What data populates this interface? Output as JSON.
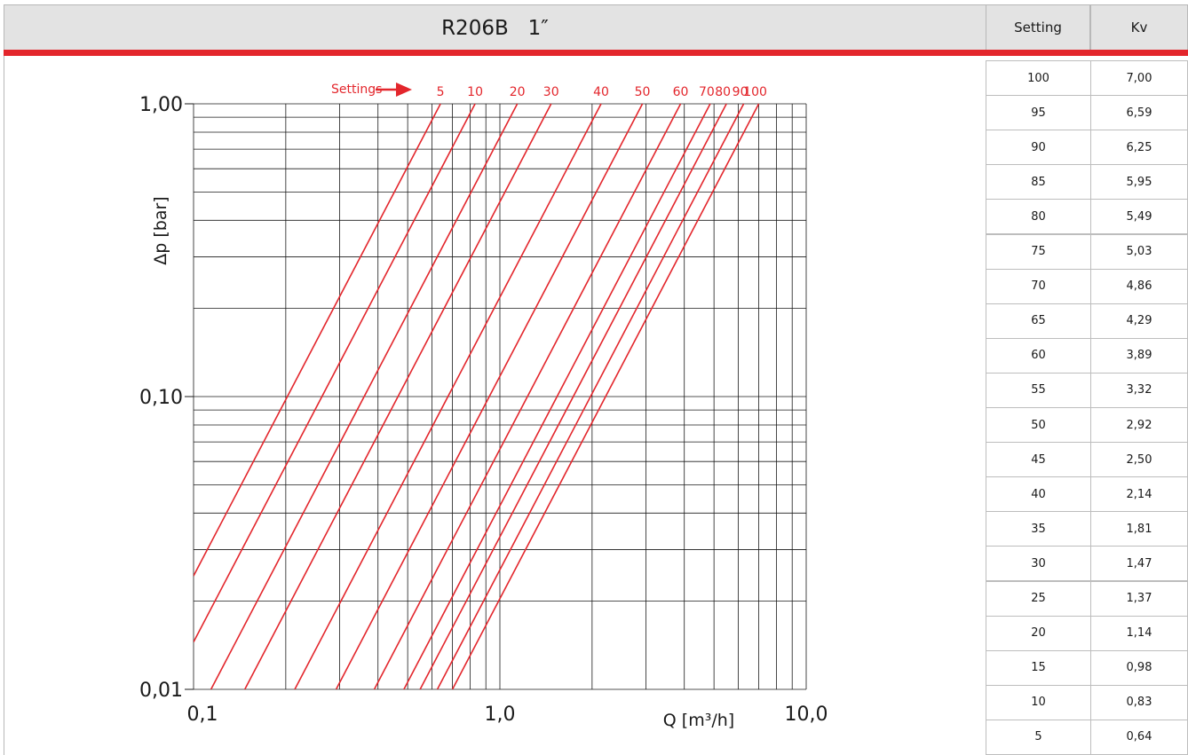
{
  "header": {
    "title": "R206B   1″"
  },
  "table": {
    "col_setting": "Setting",
    "col_kv": "Kv",
    "rows": [
      {
        "setting": "100",
        "kv": "7,00"
      },
      {
        "setting": "95",
        "kv": "6,59"
      },
      {
        "setting": "90",
        "kv": "6,25"
      },
      {
        "setting": "85",
        "kv": "5,95"
      },
      {
        "setting": "80",
        "kv": "5,49"
      },
      {
        "setting": "75",
        "kv": "5,03"
      },
      {
        "setting": "70",
        "kv": "4,86"
      },
      {
        "setting": "65",
        "kv": "4,29"
      },
      {
        "setting": "60",
        "kv": "3,89"
      },
      {
        "setting": "55",
        "kv": "3,32"
      },
      {
        "setting": "50",
        "kv": "2,92"
      },
      {
        "setting": "45",
        "kv": "2,50"
      },
      {
        "setting": "40",
        "kv": "2,14"
      },
      {
        "setting": "35",
        "kv": "1,81"
      },
      {
        "setting": "30",
        "kv": "1,47"
      },
      {
        "setting": "25",
        "kv": "1,37"
      },
      {
        "setting": "20",
        "kv": "1,14"
      },
      {
        "setting": "15",
        "kv": "0,98"
      },
      {
        "setting": "10",
        "kv": "0,83"
      },
      {
        "setting": "5",
        "kv": "0,64"
      }
    ]
  },
  "colors": {
    "accent": "#e3262c",
    "header_bg": "#e3e3e3",
    "grid": "#1a1a1a"
  },
  "chart_data": {
    "type": "line",
    "xlabel": "Q [m³/h]",
    "ylabel": "Δp [bar]",
    "x_scale": "log",
    "y_scale": "log",
    "xlim": [
      0.1,
      10.0
    ],
    "ylim": [
      0.01,
      1.0
    ],
    "x_tick_labels": [
      {
        "value": 0.1,
        "label": "0,1"
      },
      {
        "value": 1.0,
        "label": "1,0"
      },
      {
        "value": 10.0,
        "label": "10,0"
      }
    ],
    "y_tick_labels": [
      {
        "value": 1.0,
        "label": "1,00"
      },
      {
        "value": 0.1,
        "label": "0,10"
      },
      {
        "value": 0.01,
        "label": "0,01"
      }
    ],
    "grid": true,
    "annotation": "Settings",
    "relation": "dp = (Q / Kv)^2",
    "series": [
      {
        "name": "5",
        "kv": 0.64
      },
      {
        "name": "10",
        "kv": 0.83
      },
      {
        "name": "20",
        "kv": 1.14
      },
      {
        "name": "30",
        "kv": 1.47
      },
      {
        "name": "40",
        "kv": 2.14
      },
      {
        "name": "50",
        "kv": 2.92
      },
      {
        "name": "60",
        "kv": 3.89
      },
      {
        "name": "70",
        "kv": 4.86
      },
      {
        "name": "80",
        "kv": 5.49
      },
      {
        "name": "90",
        "kv": 6.25
      },
      {
        "name": "100",
        "kv": 7.0
      }
    ]
  }
}
